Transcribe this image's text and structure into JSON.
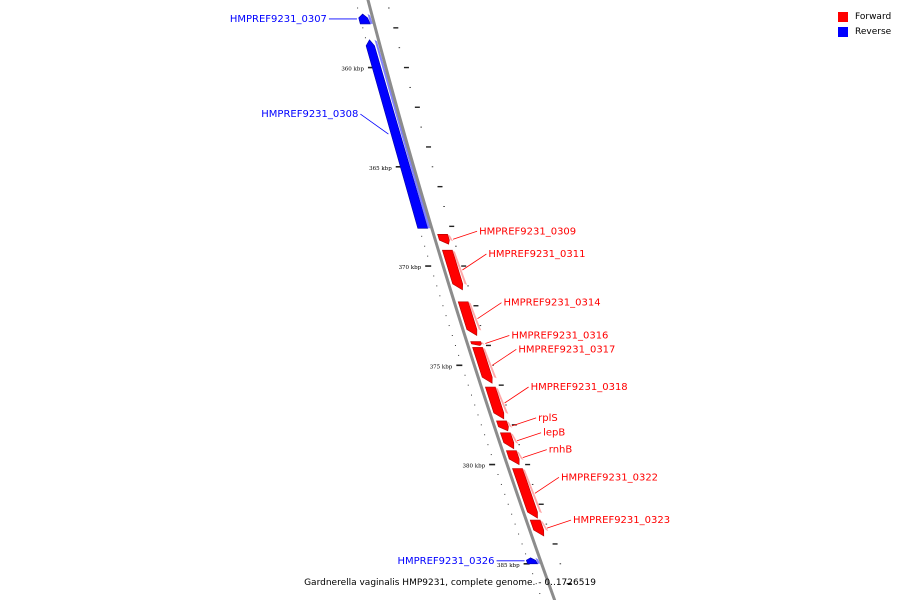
{
  "caption": "Gardnerella vaginalis HMP9231, complete genome. - 0..1726519",
  "legend": [
    {
      "label": "Forward",
      "color": "#ff0000"
    },
    {
      "label": "Reverse",
      "color": "#0000ff"
    }
  ],
  "colors": {
    "forward": "#ff0000",
    "reverse": "#0000ff",
    "backbone": "#8c8c8c"
  },
  "ticks": [
    {
      "pos": 360,
      "label": "360 kbp"
    },
    {
      "pos": 365,
      "label": "365 kbp"
    },
    {
      "pos": 370,
      "label": "370 kbp"
    },
    {
      "pos": 375,
      "label": "375 kbp"
    },
    {
      "pos": 380,
      "label": "380 kbp"
    },
    {
      "pos": 385,
      "label": "385 kbp"
    }
  ],
  "genes": [
    {
      "name": "HMPREF9231_0307",
      "strand": "reverse",
      "start": 357.3,
      "end": 357.8
    },
    {
      "name": "HMPREF9231_0308",
      "strand": "reverse",
      "start": 358.6,
      "end": 368.1
    },
    {
      "name": "HMPREF9231_0309",
      "strand": "forward",
      "start": 368.4,
      "end": 368.9
    },
    {
      "name": "HMPREF9231_0311",
      "strand": "forward",
      "start": 369.2,
      "end": 371.2
    },
    {
      "name": "HMPREF9231_0314",
      "strand": "forward",
      "start": 371.8,
      "end": 373.5
    },
    {
      "name": "HMPREF9231_0316",
      "strand": "forward",
      "start": 373.8,
      "end": 374.0
    },
    {
      "name": "HMPREF9231_0317",
      "strand": "forward",
      "start": 374.1,
      "end": 375.9
    },
    {
      "name": "HMPREF9231_0318",
      "strand": "forward",
      "start": 376.1,
      "end": 377.7
    },
    {
      "name": "rplS",
      "strand": "forward",
      "start": 377.8,
      "end": 378.3
    },
    {
      "name": "lepB",
      "strand": "forward",
      "start": 378.4,
      "end": 379.2
    },
    {
      "name": "rnhB",
      "strand": "forward",
      "start": 379.3,
      "end": 380.0
    },
    {
      "name": "HMPREF9231_0322",
      "strand": "forward",
      "start": 380.2,
      "end": 382.7
    },
    {
      "name": "HMPREF9231_0323",
      "strand": "forward",
      "start": 382.8,
      "end": 383.6
    },
    {
      "name": "HMPREF9231_0326",
      "strand": "reverse",
      "start": 384.7,
      "end": 385.0
    }
  ]
}
